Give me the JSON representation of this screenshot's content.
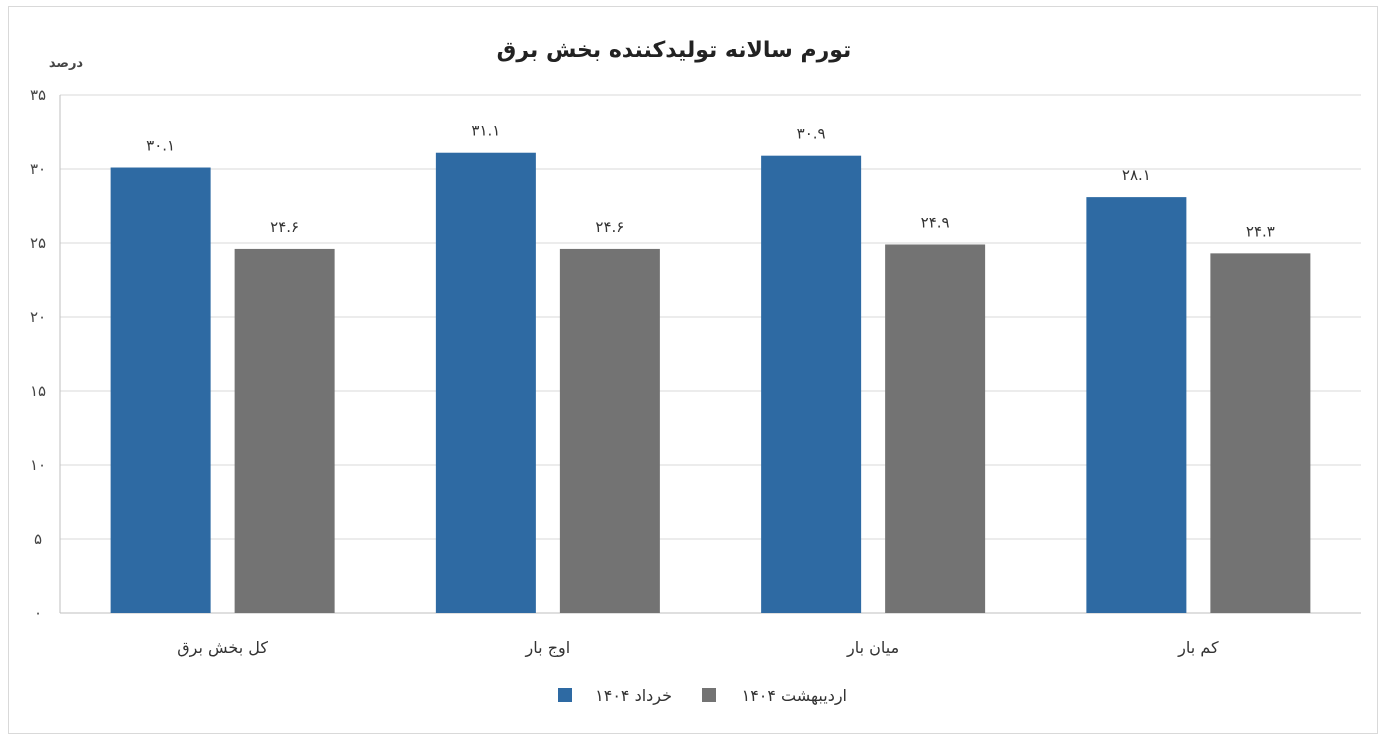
{
  "chart_data": {
    "type": "bar",
    "title": "تورم سالانه تولیدکننده بخش برق",
    "ylabel": "درصد",
    "ylim": [
      0,
      35
    ],
    "yticks": [
      0,
      5,
      10,
      15,
      20,
      25,
      30,
      35
    ],
    "ytick_labels": [
      "۰",
      "۵",
      "۱۰",
      "۱۵",
      "۲۰",
      "۲۵",
      "۳۰",
      "۳۵"
    ],
    "categories": [
      "کل بخش برق",
      "اوج بار",
      "میان بار",
      "کم بار"
    ],
    "series": [
      {
        "name": "خرداد ۱۴۰۴",
        "color": "#2e6aa3",
        "values": [
          30.1,
          31.1,
          30.9,
          28.1
        ],
        "labels": [
          "۳۰.۱",
          "۳۱.۱",
          "۳۰.۹",
          "۲۸.۱"
        ]
      },
      {
        "name": "اردیبهشت ۱۴۰۴",
        "color": "#737373",
        "values": [
          24.6,
          24.6,
          24.9,
          24.3
        ],
        "labels": [
          "۲۴.۶",
          "۲۴.۶",
          "۲۴.۹",
          "۲۴.۳"
        ]
      }
    ],
    "grid": true,
    "legend": "bottom"
  }
}
